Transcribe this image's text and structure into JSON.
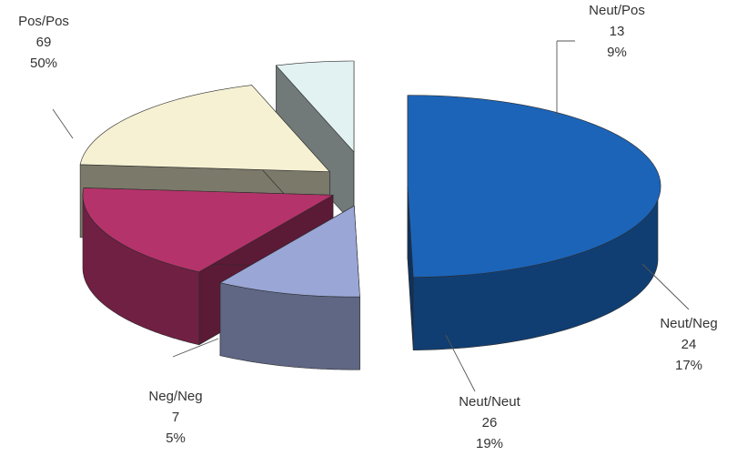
{
  "chart_data": {
    "type": "pie",
    "title": "",
    "slices": [
      {
        "label": "Pos/Pos",
        "value": 69,
        "percent": "50%",
        "color": "#1c64b8"
      },
      {
        "label": "Neut/Pos",
        "value": 13,
        "percent": "9%",
        "color": "#9aa6d6"
      },
      {
        "label": "Neut/Neg",
        "value": 24,
        "percent": "17%",
        "color": "#b5336b"
      },
      {
        "label": "Neut/Neut",
        "value": 26,
        "percent": "19%",
        "color": "#f5f1d2"
      },
      {
        "label": "Neg/Neg",
        "value": 7,
        "percent": "5%",
        "color": "#e2f1f1"
      }
    ],
    "exploded": true,
    "three_d": true
  }
}
